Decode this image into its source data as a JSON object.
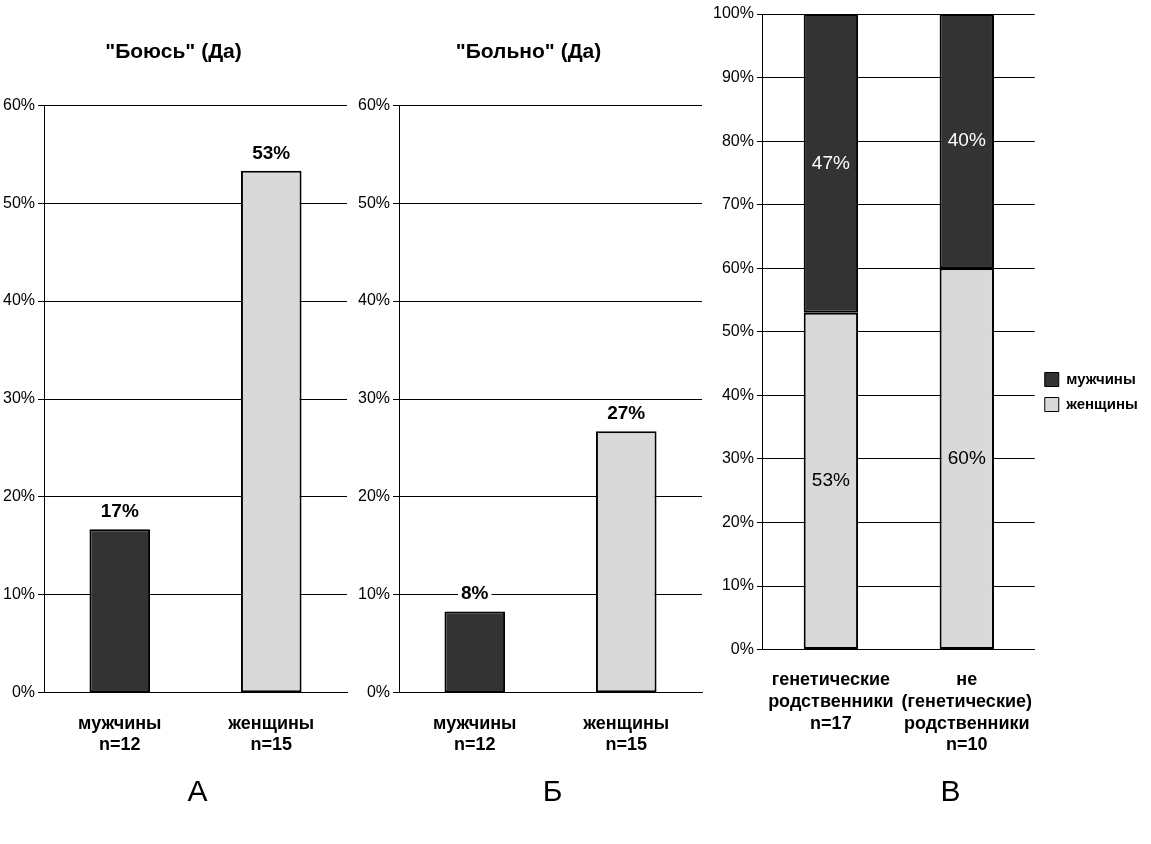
{
  "chart_data": [
    {
      "type": "bar",
      "title": "\"Боюсь\" (Да)",
      "categories": [
        "мужчины\nn=12",
        "женщины\nn=15"
      ],
      "values": [
        16.7,
        53.3
      ],
      "value_labels": [
        "17%",
        "53%"
      ],
      "colors": [
        "#333333",
        "#d9d9d9"
      ],
      "ylim": [
        0,
        60
      ],
      "yticks": [
        {
          "value": 0,
          "label": "0%"
        },
        {
          "value": 10,
          "label": "10%"
        },
        {
          "value": 20,
          "label": "20%"
        },
        {
          "value": 30,
          "label": "30%"
        },
        {
          "value": 40,
          "label": "40%"
        },
        {
          "value": 50,
          "label": "50%"
        },
        {
          "value": 60,
          "label": "60%"
        }
      ],
      "grid": "y",
      "legend": false,
      "annotations": [
        "А"
      ]
    },
    {
      "type": "bar",
      "title": "\"Больно\" (Да)",
      "categories": [
        "мужчины\nn=12",
        "женщины\nn=15"
      ],
      "values": [
        8.3,
        26.7
      ],
      "value_labels": [
        "8%",
        "27%"
      ],
      "colors": [
        "#333333",
        "#d9d9d9"
      ],
      "ylim": [
        0,
        60
      ],
      "yticks": [
        {
          "value": 0,
          "label": "0%"
        },
        {
          "value": 10,
          "label": "10%"
        },
        {
          "value": 20,
          "label": "20%"
        },
        {
          "value": 30,
          "label": "30%"
        },
        {
          "value": 40,
          "label": "40%"
        },
        {
          "value": 50,
          "label": "50%"
        },
        {
          "value": 60,
          "label": "60%"
        }
      ],
      "grid": "y",
      "legend": false,
      "annotations": [
        "Б"
      ]
    },
    {
      "type": "bar",
      "stacked": true,
      "categories": [
        "генетические\nродственники\nn=17",
        "не\n(генетические)\nродственники\nn=10"
      ],
      "series": [
        {
          "name": "женщины",
          "color": "#d9d9d9",
          "values": [
            53,
            60
          ],
          "value_labels": [
            "53%",
            "60%"
          ]
        },
        {
          "name": "мужчины",
          "color": "#333333",
          "values": [
            47,
            40
          ],
          "value_labels": [
            "47%",
            "40%"
          ]
        }
      ],
      "ylim": [
        0,
        100
      ],
      "yticks": [
        {
          "value": 0,
          "label": "0%"
        },
        {
          "value": 10,
          "label": "10%"
        },
        {
          "value": 20,
          "label": "20%"
        },
        {
          "value": 30,
          "label": "30%"
        },
        {
          "value": 40,
          "label": "40%"
        },
        {
          "value": 50,
          "label": "50%"
        },
        {
          "value": 60,
          "label": "60%"
        },
        {
          "value": 70,
          "label": "70%"
        },
        {
          "value": 80,
          "label": "80%"
        },
        {
          "value": 90,
          "label": "90%"
        },
        {
          "value": 100,
          "label": "100%"
        }
      ],
      "grid": "y",
      "legend": "right",
      "annotations": [
        "В"
      ]
    }
  ]
}
